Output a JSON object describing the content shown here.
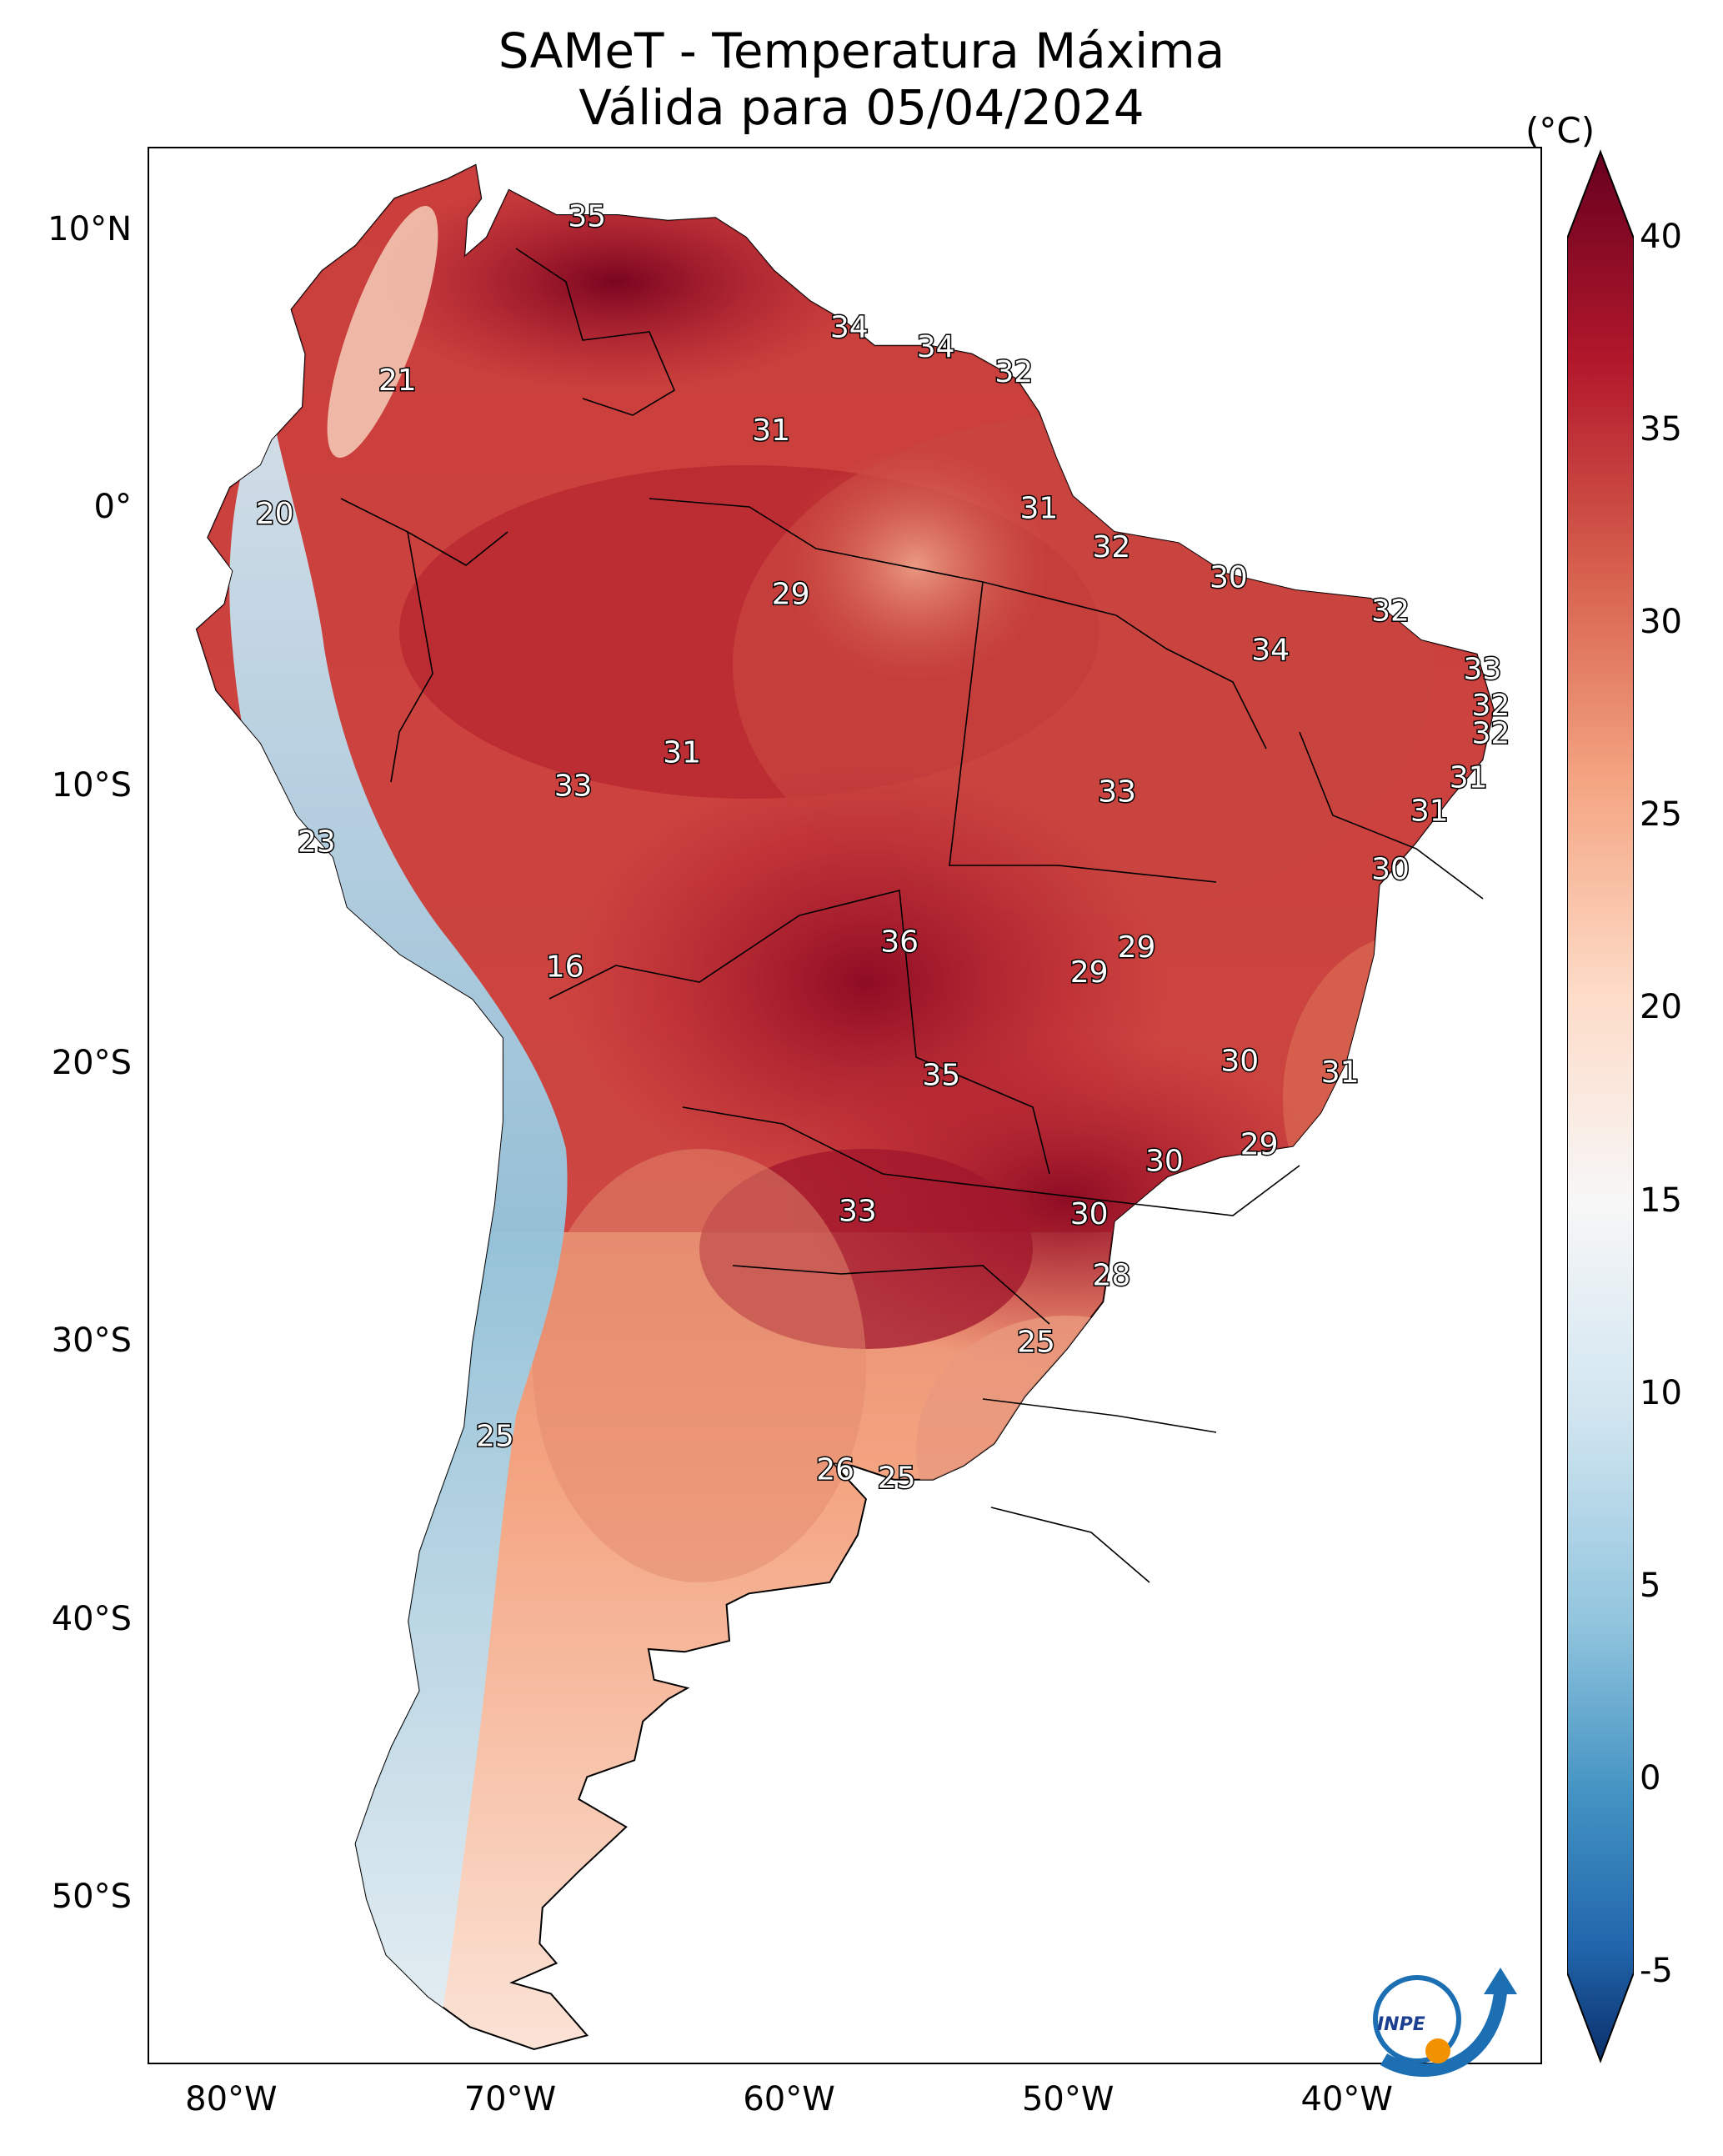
{
  "title": {
    "line1": "SAMeT - Temperatura Máxima",
    "line2": "Válida para 05/04/2024"
  },
  "axes": {
    "lat_labels": [
      "10°N",
      "0°",
      "10°S",
      "20°S",
      "30°S",
      "40°S",
      "50°S"
    ],
    "lon_labels": [
      "80°W",
      "70°W",
      "60°W",
      "50°W",
      "40°W"
    ],
    "lon_range": [
      -83,
      -33
    ],
    "lat_range": [
      -56,
      13
    ]
  },
  "colorbar": {
    "unit": "(°C)",
    "ticks": [
      "40",
      "35",
      "30",
      "25",
      "20",
      "15",
      "10",
      "5",
      "0",
      "-5"
    ],
    "range": [
      -5,
      40
    ],
    "colors": [
      "#0b2f6b",
      "#2166ac",
      "#4393c3",
      "#92c5de",
      "#d1e5f0",
      "#f7f7f7",
      "#fddbc7",
      "#f4a582",
      "#d6604d",
      "#b2182b",
      "#67001f"
    ]
  },
  "city_temps": [
    {
      "t": "35",
      "lon": -67.3,
      "lat": 10.5
    },
    {
      "t": "34",
      "lon": -57.9,
      "lat": 6.5
    },
    {
      "t": "34",
      "lon": -54.8,
      "lat": 5.8
    },
    {
      "t": "32",
      "lon": -52.0,
      "lat": 4.9
    },
    {
      "t": "21",
      "lon": -74.1,
      "lat": 4.6
    },
    {
      "t": "31",
      "lon": -60.7,
      "lat": 2.8
    },
    {
      "t": "31",
      "lon": -51.1,
      "lat": 0.0
    },
    {
      "t": "20",
      "lon": -78.5,
      "lat": -0.2
    },
    {
      "t": "32",
      "lon": -48.5,
      "lat": -1.4
    },
    {
      "t": "30",
      "lon": -44.3,
      "lat": -2.5
    },
    {
      "t": "29",
      "lon": -60.0,
      "lat": -3.1
    },
    {
      "t": "32",
      "lon": -38.5,
      "lat": -3.7
    },
    {
      "t": "34",
      "lon": -42.8,
      "lat": -5.1
    },
    {
      "t": "33",
      "lon": -35.2,
      "lat": -5.8
    },
    {
      "t": "32",
      "lon": -34.9,
      "lat": -7.1
    },
    {
      "t": "32",
      "lon": -34.9,
      "lat": -8.1
    },
    {
      "t": "31",
      "lon": -63.9,
      "lat": -8.8
    },
    {
      "t": "31",
      "lon": -35.7,
      "lat": -9.7
    },
    {
      "t": "33",
      "lon": -67.8,
      "lat": -10.0
    },
    {
      "t": "33",
      "lon": -48.3,
      "lat": -10.2
    },
    {
      "t": "31",
      "lon": -37.1,
      "lat": -10.9
    },
    {
      "t": "23",
      "lon": -77.0,
      "lat": -12.0
    },
    {
      "t": "30",
      "lon": -38.5,
      "lat": -13.0
    },
    {
      "t": "36",
      "lon": -56.1,
      "lat": -15.6
    },
    {
      "t": "29",
      "lon": -47.6,
      "lat": -15.8
    },
    {
      "t": "29",
      "lon": -49.3,
      "lat": -16.7
    },
    {
      "t": "16",
      "lon": -68.1,
      "lat": -16.5
    },
    {
      "t": "30",
      "lon": -43.9,
      "lat": -19.9
    },
    {
      "t": "31",
      "lon": -40.3,
      "lat": -20.3
    },
    {
      "t": "35",
      "lon": -54.6,
      "lat": -20.4
    },
    {
      "t": "29",
      "lon": -43.2,
      "lat": -22.9
    },
    {
      "t": "30",
      "lon": -46.6,
      "lat": -23.5
    },
    {
      "t": "33",
      "lon": -57.6,
      "lat": -25.3
    },
    {
      "t": "30",
      "lon": -49.3,
      "lat": -25.4
    },
    {
      "t": "28",
      "lon": -48.5,
      "lat": -27.6
    },
    {
      "t": "25",
      "lon": -51.2,
      "lat": -30.0
    },
    {
      "t": "25",
      "lon": -70.6,
      "lat": -33.4
    },
    {
      "t": "26",
      "lon": -58.4,
      "lat": -34.6
    },
    {
      "t": "25",
      "lon": -56.2,
      "lat": -34.9
    }
  ],
  "logo": {
    "text": "INPE"
  }
}
